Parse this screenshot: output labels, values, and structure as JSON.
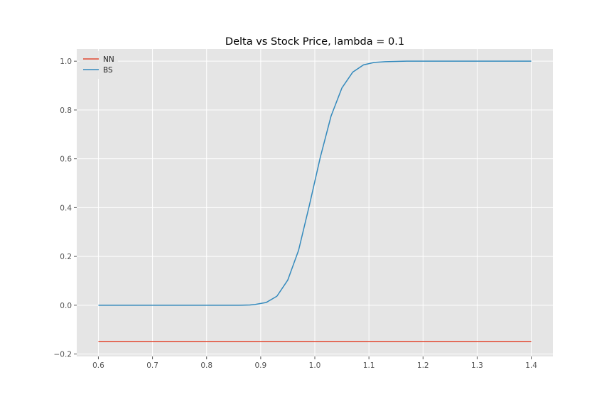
{
  "chart_data": {
    "type": "line",
    "title": "Delta vs Stock Price, lambda = 0.1",
    "xlabel": "",
    "ylabel": "",
    "xlim": [
      0.56,
      1.44
    ],
    "ylim": [
      -0.21,
      1.05
    ],
    "xticks": [
      0.6,
      0.7,
      0.8,
      0.9,
      1.0,
      1.1,
      1.2,
      1.3,
      1.4
    ],
    "xtick_labels": [
      "0.6",
      "0.7",
      "0.8",
      "0.9",
      "1.0",
      "1.1",
      "1.2",
      "1.3",
      "1.4"
    ],
    "yticks": [
      -0.2,
      0.0,
      0.2,
      0.4,
      0.6,
      0.8,
      1.0
    ],
    "ytick_labels": [
      "−0.2",
      "0.0",
      "0.2",
      "0.4",
      "0.6",
      "0.8",
      "1.0"
    ],
    "grid": true,
    "legend": {
      "placement": "upper-left"
    },
    "series": [
      {
        "name": "NN",
        "color": "#E24A33",
        "x": [
          0.6,
          1.4
        ],
        "y": [
          -0.148,
          -0.148
        ]
      },
      {
        "name": "BS",
        "color": "#348ABD",
        "x": [
          0.6,
          0.62,
          0.64,
          0.66,
          0.68,
          0.7,
          0.72,
          0.74,
          0.76,
          0.78,
          0.8,
          0.82,
          0.84,
          0.86,
          0.88,
          0.89,
          0.91,
          0.93,
          0.95,
          0.97,
          0.99,
          1.01,
          1.03,
          1.05,
          1.07,
          1.09,
          1.11,
          1.13,
          1.15,
          1.17,
          1.2,
          1.25,
          1.3,
          1.35,
          1.4
        ],
        "y": [
          0,
          0,
          0,
          0,
          0,
          0,
          0,
          0,
          0,
          0,
          0,
          0,
          0,
          0,
          0.001,
          0.003,
          0.011,
          0.037,
          0.103,
          0.225,
          0.41,
          0.605,
          0.775,
          0.89,
          0.955,
          0.985,
          0.995,
          0.998,
          0.999,
          1.0,
          1.0,
          1.0,
          1.0,
          1.0,
          1.0
        ]
      }
    ]
  }
}
